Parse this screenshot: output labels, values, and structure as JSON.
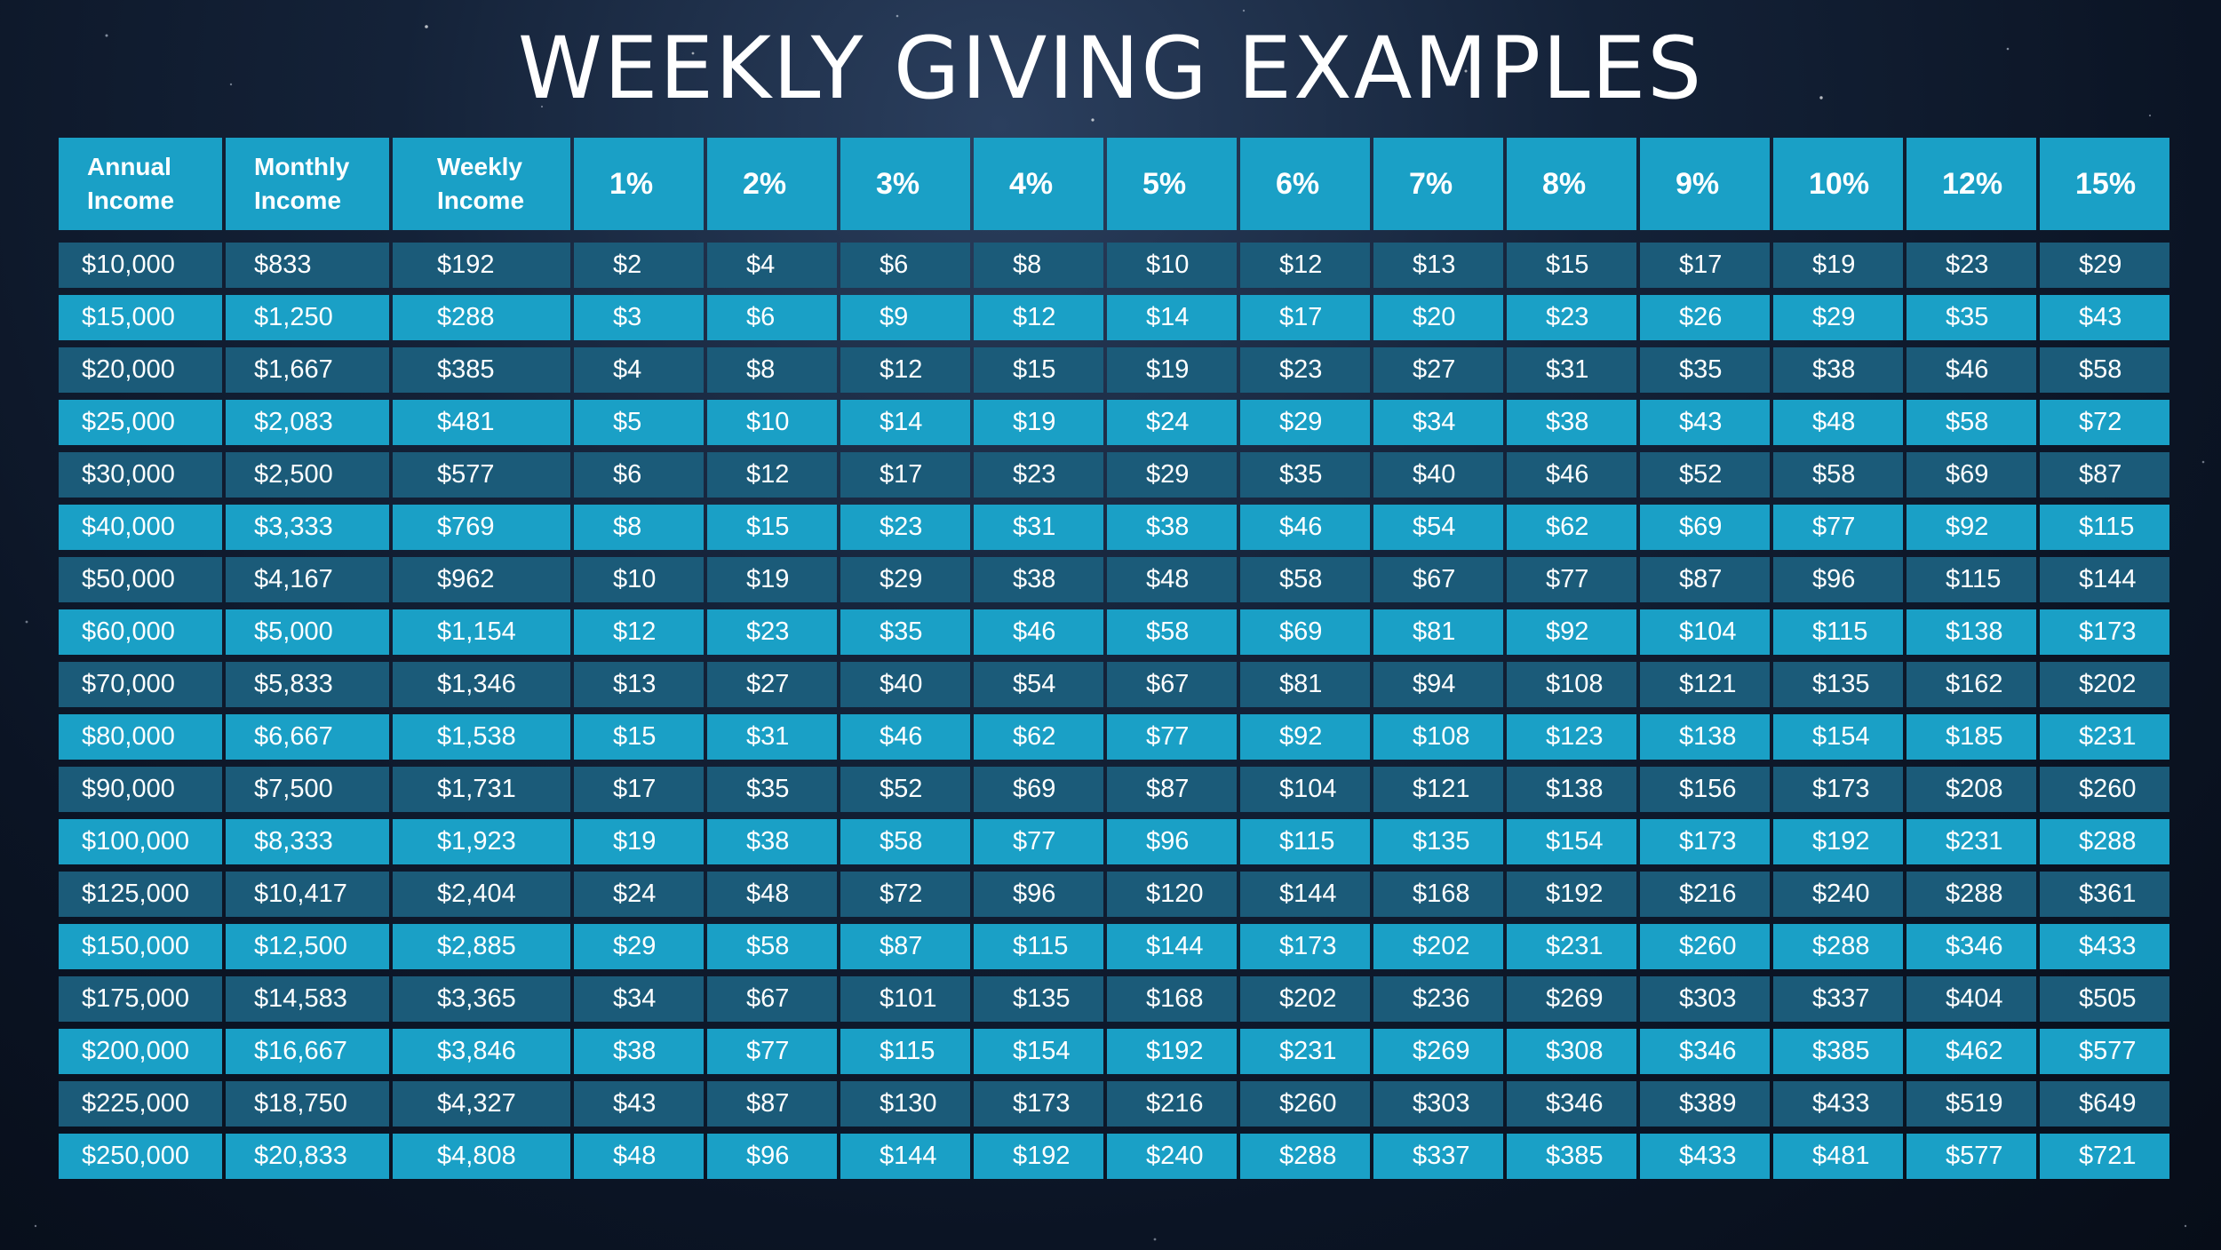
{
  "title": "WEEKLY GIVING EXAMPLES",
  "colors": {
    "header": "#1aa0c6",
    "row_light": "#1aa0c6",
    "row_dark": "#1b5b79",
    "background": "#0b1424"
  },
  "headers": [
    [
      "Annual",
      "Income"
    ],
    [
      "Monthly",
      "Income"
    ],
    [
      "Weekly",
      "Income"
    ],
    "1%",
    "2%",
    "3%",
    "4%",
    "5%",
    "6%",
    "7%",
    "8%",
    "9%",
    "10%",
    "12%",
    "15%"
  ],
  "rows": [
    [
      "$10,000",
      "$833",
      "$192",
      "$2",
      "$4",
      "$6",
      "$8",
      "$10",
      "$12",
      "$13",
      "$15",
      "$17",
      "$19",
      "$23",
      "$29"
    ],
    [
      "$15,000",
      "$1,250",
      "$288",
      "$3",
      "$6",
      "$9",
      "$12",
      "$14",
      "$17",
      "$20",
      "$23",
      "$26",
      "$29",
      "$35",
      "$43"
    ],
    [
      "$20,000",
      "$1,667",
      "$385",
      "$4",
      "$8",
      "$12",
      "$15",
      "$19",
      "$23",
      "$27",
      "$31",
      "$35",
      "$38",
      "$46",
      "$58"
    ],
    [
      "$25,000",
      "$2,083",
      "$481",
      "$5",
      "$10",
      "$14",
      "$19",
      "$24",
      "$29",
      "$34",
      "$38",
      "$43",
      "$48",
      "$58",
      "$72"
    ],
    [
      "$30,000",
      "$2,500",
      "$577",
      "$6",
      "$12",
      "$17",
      "$23",
      "$29",
      "$35",
      "$40",
      "$46",
      "$52",
      "$58",
      "$69",
      "$87"
    ],
    [
      "$40,000",
      "$3,333",
      "$769",
      "$8",
      "$15",
      "$23",
      "$31",
      "$38",
      "$46",
      "$54",
      "$62",
      "$69",
      "$77",
      "$92",
      "$115"
    ],
    [
      "$50,000",
      "$4,167",
      "$962",
      "$10",
      "$19",
      "$29",
      "$38",
      "$48",
      "$58",
      "$67",
      "$77",
      "$87",
      "$96",
      "$115",
      "$144"
    ],
    [
      "$60,000",
      "$5,000",
      "$1,154",
      "$12",
      "$23",
      "$35",
      "$46",
      "$58",
      "$69",
      "$81",
      "$92",
      "$104",
      "$115",
      "$138",
      "$173"
    ],
    [
      "$70,000",
      "$5,833",
      "$1,346",
      "$13",
      "$27",
      "$40",
      "$54",
      "$67",
      "$81",
      "$94",
      "$108",
      "$121",
      "$135",
      "$162",
      "$202"
    ],
    [
      "$80,000",
      "$6,667",
      "$1,538",
      "$15",
      "$31",
      "$46",
      "$62",
      "$77",
      "$92",
      "$108",
      "$123",
      "$138",
      "$154",
      "$185",
      "$231"
    ],
    [
      "$90,000",
      "$7,500",
      "$1,731",
      "$17",
      "$35",
      "$52",
      "$69",
      "$87",
      "$104",
      "$121",
      "$138",
      "$156",
      "$173",
      "$208",
      "$260"
    ],
    [
      "$100,000",
      "$8,333",
      "$1,923",
      "$19",
      "$38",
      "$58",
      "$77",
      "$96",
      "$115",
      "$135",
      "$154",
      "$173",
      "$192",
      "$231",
      "$288"
    ],
    [
      "$125,000",
      "$10,417",
      "$2,404",
      "$24",
      "$48",
      "$72",
      "$96",
      "$120",
      "$144",
      "$168",
      "$192",
      "$216",
      "$240",
      "$288",
      "$361"
    ],
    [
      "$150,000",
      "$12,500",
      "$2,885",
      "$29",
      "$58",
      "$87",
      "$115",
      "$144",
      "$173",
      "$202",
      "$231",
      "$260",
      "$288",
      "$346",
      "$433"
    ],
    [
      "$175,000",
      "$14,583",
      "$3,365",
      "$34",
      "$67",
      "$101",
      "$135",
      "$168",
      "$202",
      "$236",
      "$269",
      "$303",
      "$337",
      "$404",
      "$505"
    ],
    [
      "$200,000",
      "$16,667",
      "$3,846",
      "$38",
      "$77",
      "$115",
      "$154",
      "$192",
      "$231",
      "$269",
      "$308",
      "$346",
      "$385",
      "$462",
      "$577"
    ],
    [
      "$225,000",
      "$18,750",
      "$4,327",
      "$43",
      "$87",
      "$130",
      "$173",
      "$216",
      "$260",
      "$303",
      "$346",
      "$389",
      "$433",
      "$519",
      "$649"
    ],
    [
      "$250,000",
      "$20,833",
      "$4,808",
      "$48",
      "$96",
      "$144",
      "$192",
      "$240",
      "$288",
      "$337",
      "$385",
      "$433",
      "$481",
      "$577",
      "$721"
    ]
  ]
}
